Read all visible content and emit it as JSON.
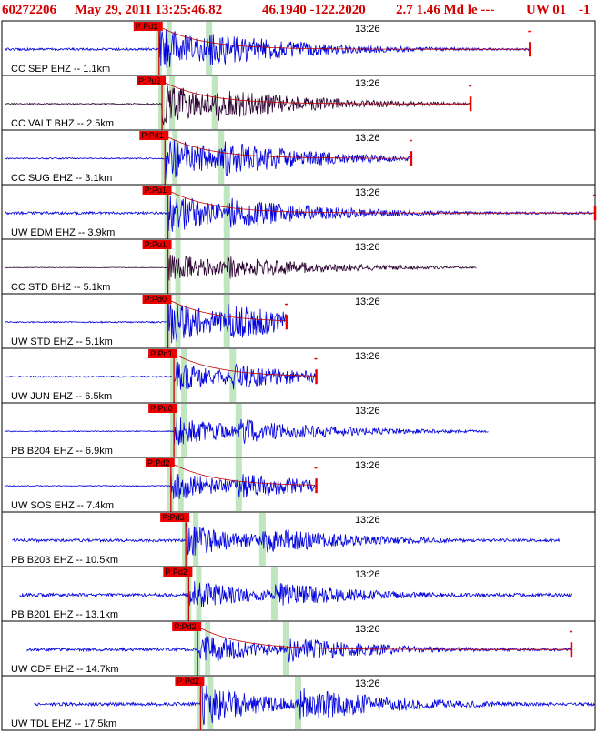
{
  "header": {
    "event_id": "60272206",
    "date_time": "May 29, 2011 13:25:46.82",
    "location": "46.1940 -122.2020",
    "magnitude_info": "2.7 1.46 Md le ---",
    "network_info": "UW 01",
    "tail": "-1"
  },
  "colors": {
    "header": "#d40000",
    "waveform_blue": "#0000dd",
    "waveform_dark": "#2a0030",
    "pick_box": "#ee0000",
    "pick_line": "#d40000",
    "window_band": "#bfe6bf",
    "coda_curve": "#c00000"
  },
  "chart_data": {
    "type": "line",
    "title": "",
    "time_label": "13:26",
    "traces": [
      {
        "label": "CC SEP EHZ -- 1.1km",
        "pick": "P:Pd1",
        "color": "dark_blue",
        "p_frac": 0.265,
        "s_frac": 0.35,
        "end_frac": 0.89,
        "coda": true,
        "ampl": 0.85,
        "noise": 0.05
      },
      {
        "label": "CC VALT BHZ -- 2.5km",
        "pick": "P:Pu2",
        "color": "dark",
        "p_frac": 0.27,
        "s_frac": 0.36,
        "end_frac": 0.79,
        "coda": true,
        "ampl": 0.8,
        "noise": 0.03
      },
      {
        "label": "CC SUG EHZ -- 3.1km",
        "pick": "P:Pd1",
        "color": "blue",
        "p_frac": 0.275,
        "s_frac": 0.37,
        "end_frac": 0.69,
        "coda": true,
        "ampl": 0.85,
        "noise": 0.03
      },
      {
        "label": "UW EDM EHZ -- 3.9km",
        "pick": "P:Pu1",
        "color": "blue",
        "p_frac": 0.28,
        "s_frac": 0.38,
        "end_frac": 1.0,
        "coda": true,
        "ampl": 0.8,
        "noise": 0.06
      },
      {
        "label": "CC STD BHZ -- 5.1km",
        "pick": "P:Pu1",
        "color": "dark",
        "p_frac": 0.28,
        "s_frac": 0.38,
        "end_frac": 0.8,
        "coda": false,
        "ampl": 0.55,
        "noise": 0.02
      },
      {
        "label": "UW STD EHZ -- 5.1km",
        "pick": "P:Pd0",
        "color": "blue",
        "p_frac": 0.28,
        "s_frac": 0.38,
        "end_frac": 0.48,
        "coda": true,
        "ampl": 0.85,
        "noise": 0.03
      },
      {
        "label": "UW JUN EHZ -- 6.5km",
        "pick": "P:Pd1",
        "color": "blue",
        "p_frac": 0.29,
        "s_frac": 0.39,
        "end_frac": 0.53,
        "coda": true,
        "ampl": 0.6,
        "noise": 0.04
      },
      {
        "label": "PB B204 EHZ -- 6.9km",
        "pick": "P:Pd0",
        "color": "blue",
        "p_frac": 0.29,
        "s_frac": 0.4,
        "end_frac": 0.82,
        "coda": false,
        "ampl": 0.6,
        "noise": 0.03
      },
      {
        "label": "UW SOS EHZ -- 7.4km",
        "pick": "P:Pd2",
        "color": "blue",
        "p_frac": 0.285,
        "s_frac": 0.4,
        "end_frac": 0.53,
        "coda": true,
        "ampl": 0.6,
        "noise": 0.03
      },
      {
        "label": "PB B203 EHZ -- 10.5km",
        "pick": "P:Pd3",
        "color": "blue",
        "p_frac": 0.31,
        "s_frac": 0.44,
        "end_frac": 0.94,
        "coda": false,
        "ampl": 0.65,
        "noise": 0.08
      },
      {
        "label": "PB B201 EHZ -- 13.1km",
        "pick": "P:Pd2",
        "color": "blue",
        "p_frac": 0.315,
        "s_frac": 0.46,
        "end_frac": 0.96,
        "coda": false,
        "ampl": 0.6,
        "noise": 0.1
      },
      {
        "label": "UW CDF EHZ -- 14.7km",
        "pick": "P:Pd2",
        "color": "blue",
        "p_frac": 0.33,
        "s_frac": 0.48,
        "end_frac": 0.96,
        "coda": true,
        "ampl": 0.6,
        "noise": 0.09
      },
      {
        "label": "UW TDL EHZ -- 17.5km",
        "pick": "P:Pd2",
        "color": "blue",
        "p_frac": 0.335,
        "s_frac": 0.5,
        "end_frac": 1.0,
        "coda": false,
        "ampl": 0.85,
        "noise": 0.07
      }
    ]
  }
}
